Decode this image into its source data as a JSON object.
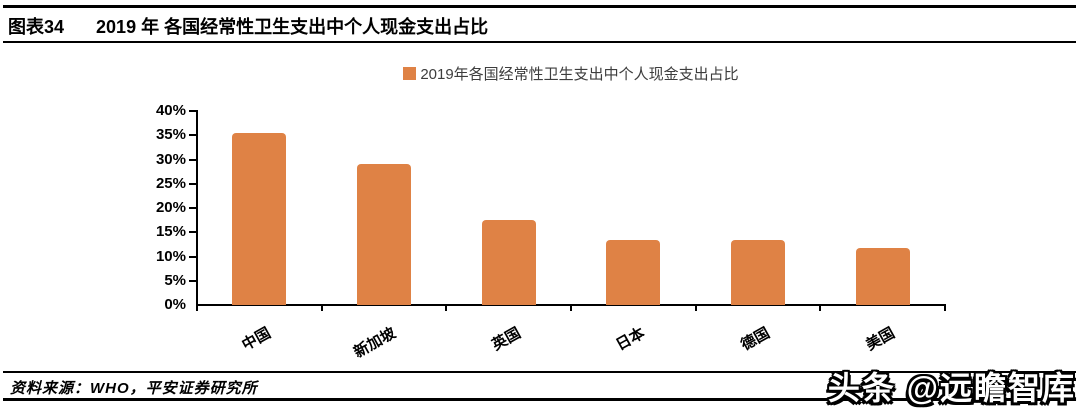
{
  "header": {
    "figure_label": "图表34",
    "title": "2019 年 各国经常性卫生支出中个人现金支出占比"
  },
  "legend": {
    "label": "2019年各国经常性卫生支出中个人现金支出占比",
    "swatch_color": "#DF8245"
  },
  "chart_data": {
    "type": "bar",
    "title": "2019年各国经常性卫生支出中个人现金支出占比",
    "categories": [
      "中国",
      "新加坡",
      "英国",
      "日本",
      "德国",
      "美国"
    ],
    "values": [
      35.5,
      29.0,
      17.5,
      13.4,
      13.4,
      11.7
    ],
    "unit": "%",
    "ylim": [
      0,
      40
    ],
    "ytick_step": 5,
    "ytick_labels": [
      "0%",
      "5%",
      "10%",
      "15%",
      "20%",
      "25%",
      "30%",
      "35%",
      "40%"
    ],
    "xlabel": "",
    "ylabel": "",
    "bar_color": "#DF8245",
    "grid": false,
    "legend_position": "top-center",
    "x_label_rotation_deg": -29
  },
  "footer": {
    "source": "资料来源：WHO，平安证券研究所",
    "watermark": "头条 @远瞻智库"
  }
}
